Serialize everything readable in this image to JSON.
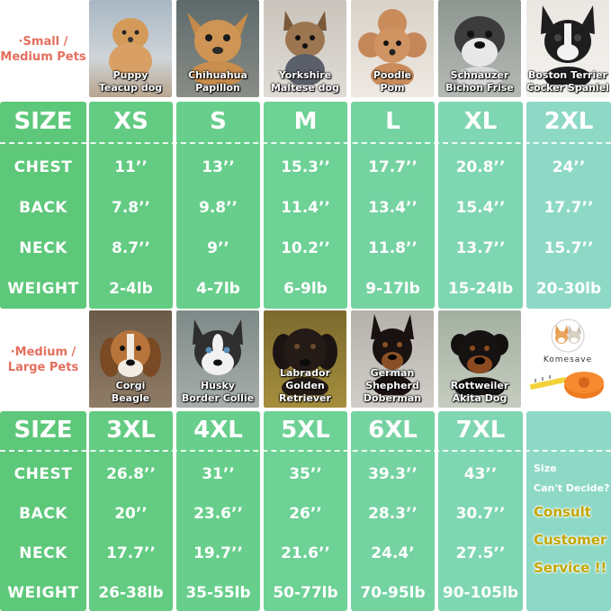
{
  "colors": {
    "green_dark": "#5ecb7e",
    "green_mid": "#6fd3a0",
    "teal_light": "#8dd9c8",
    "label_coral": "#e46f5d",
    "consult_gold": "#c2a600"
  },
  "top": {
    "label_line1": "·Small /",
    "label_line2": "Medium Pets",
    "dogs": [
      {
        "line1": "Puppy",
        "line2": "Teacup dog",
        "icon": "puppy-photo"
      },
      {
        "line1": "Chihuahua",
        "line2": "Papillon",
        "icon": "chihuahua-photo"
      },
      {
        "line1": "Yorkshire",
        "line2": "Maltese dog",
        "icon": "yorkshire-photo"
      },
      {
        "line1": "Poodle",
        "line2": "Pom",
        "icon": "poodle-photo"
      },
      {
        "line1": "Schnauzer",
        "line2": "Bichon Frise",
        "icon": "schnauzer-photo"
      },
      {
        "line1": "Boston Terrier",
        "line2": "Cocker Spaniel",
        "icon": "boston-terrier-photo"
      }
    ],
    "table": {
      "size_label": "SIZE",
      "sizes": [
        "XS",
        "S",
        "M",
        "L",
        "XL",
        "2XL"
      ],
      "rows": [
        {
          "label": "CHEST",
          "values": [
            "11’’",
            "13’’",
            "15.3’’",
            "17.7’’",
            "20.8’’",
            "24’’"
          ]
        },
        {
          "label": "BACK",
          "values": [
            "7.8’’",
            "9.8’’",
            "11.4’’",
            "13.4’’",
            "15.4’’",
            "17.7’’"
          ]
        },
        {
          "label": "NECK",
          "values": [
            "8.7’’",
            "9’’",
            "10.2’’",
            "11.8’’",
            "13.7’’",
            "15.7’’"
          ]
        },
        {
          "label": "WEIGHT",
          "values": [
            "2-4lb",
            "4-7lb",
            "6-9lb",
            "9-17lb",
            "15-24lb",
            "20-30lb"
          ]
        }
      ]
    }
  },
  "bottom": {
    "label_line1": "·Medium /",
    "label_line2": "Large Pets",
    "dogs": [
      {
        "line1": "Corgi",
        "line2": "Beagle",
        "icon": "beagle-photo"
      },
      {
        "line1": "Husky",
        "line2": "Border Collie",
        "icon": "husky-photo"
      },
      {
        "line1": "Labrador",
        "line2": "Golden Retriever",
        "icon": "labrador-photo"
      },
      {
        "line1": "German Shepherd",
        "line2": "Doberman",
        "icon": "doberman-photo"
      },
      {
        "line1": "Rottweiler",
        "line2": "Akita Dog",
        "icon": "rottweiler-photo"
      }
    ],
    "brand": {
      "name": "Komesave",
      "icon": "corgi-logo-and-tape-measure"
    },
    "table": {
      "size_label": "SIZE",
      "sizes": [
        "3XL",
        "4XL",
        "5XL",
        "6XL",
        "7XL"
      ],
      "rows": [
        {
          "label": "CHEST",
          "values": [
            "26.8’’",
            "31’’",
            "35’’",
            "39.3’’",
            "43’’"
          ]
        },
        {
          "label": "BACK",
          "values": [
            "20’’",
            "23.6’’",
            "26’’",
            "28.3’’",
            "30.7’’"
          ]
        },
        {
          "label": "NECK",
          "values": [
            "17.7’’",
            "19.7’’",
            "21.6’’",
            "24.4’",
            "27.5’’"
          ]
        },
        {
          "label": "WEIGHT",
          "values": [
            "26-38lb",
            "35-55lb",
            "50-77lb",
            "70-95lb",
            "90-105lb"
          ]
        }
      ],
      "consult": {
        "line1": "Size",
        "line2": "Can't Decide?",
        "line3": "Consult",
        "line4": "Customer",
        "line5": "Service !!"
      }
    }
  }
}
